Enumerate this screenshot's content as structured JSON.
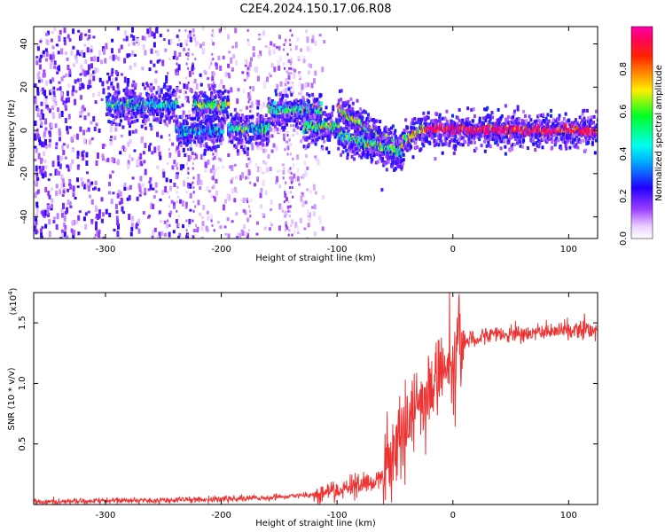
{
  "figure": {
    "title": "C2E4.2024.150.17.06.R08"
  },
  "chart_data": [
    {
      "type": "heatmap",
      "xlabel": "Height of straight line (km)",
      "ylabel": "Frequency (Hz)",
      "xlim": [
        -362,
        125
      ],
      "ylim": [
        -50,
        48
      ],
      "xticks": [
        -300,
        -200,
        -100,
        0,
        100
      ],
      "yticks": [
        -40,
        -20,
        0,
        20,
        40
      ],
      "colorbar": {
        "label": "Normalized spectral amplitude",
        "ticks": [
          0.0,
          0.2,
          0.4,
          0.6,
          0.8
        ],
        "range": [
          0,
          1
        ],
        "colormap": "rainbow (white-violet-blue-cyan-green-yellow-red-magenta)"
      },
      "tracks": [
        {
          "from": [
            -300,
            12
          ],
          "to": [
            -240,
            12
          ],
          "amp": 0.45
        },
        {
          "from": [
            -240,
            0
          ],
          "to": [
            -200,
            0
          ],
          "amp": 0.35
        },
        {
          "from": [
            -225,
            12
          ],
          "to": [
            -195,
            12
          ],
          "amp": 0.6
        },
        {
          "from": [
            -195,
            1
          ],
          "to": [
            -160,
            1
          ],
          "amp": 0.5
        },
        {
          "from": [
            -160,
            10
          ],
          "to": [
            -115,
            10
          ],
          "amp": 0.5
        },
        {
          "from": [
            -130,
            2
          ],
          "to": [
            -100,
            2
          ],
          "amp": 0.55
        },
        {
          "from": [
            -100,
            10
          ],
          "to": [
            -45,
            -10
          ],
          "amp": 0.65
        },
        {
          "from": [
            -100,
            -2
          ],
          "to": [
            -45,
            -10
          ],
          "amp": 0.55
        },
        {
          "from": [
            -45,
            -5
          ],
          "to": [
            -25,
            1
          ],
          "amp": 0.7
        },
        {
          "from": [
            -25,
            1
          ],
          "to": [
            125,
            0
          ],
          "amp": 0.95
        }
      ]
    },
    {
      "type": "line",
      "xlabel": "Height of straight line (km)",
      "ylabel": "SNR (10 * v/v)",
      "ymultiplier": "(x10",
      "ymultiplier_exp": "4",
      "ymultiplier_close": ")",
      "xlim": [
        -362,
        125
      ],
      "ylim": [
        0,
        17500
      ],
      "xticks": [
        -300,
        -200,
        -100,
        0,
        100
      ],
      "yticks": [
        5000,
        10000,
        15000
      ],
      "ytick_labels": [
        "0.5",
        "1.0",
        "1.5"
      ],
      "color": "#ee3333",
      "series": [
        {
          "x": [
            -362,
            -300,
            -250,
            -200,
            -150,
            -120,
            -100,
            -80,
            -60,
            -50,
            -40,
            -30,
            -20,
            -10,
            0,
            10,
            20,
            30,
            50,
            70,
            90,
            100,
            110,
            125
          ],
          "y": [
            200,
            300,
            350,
            450,
            600,
            800,
            1200,
            1600,
            2200,
            4000,
            6500,
            8500,
            9500,
            11000,
            12000,
            13500,
            13800,
            14000,
            14100,
            14200,
            14300,
            14400,
            14500,
            14300
          ]
        }
      ]
    }
  ]
}
